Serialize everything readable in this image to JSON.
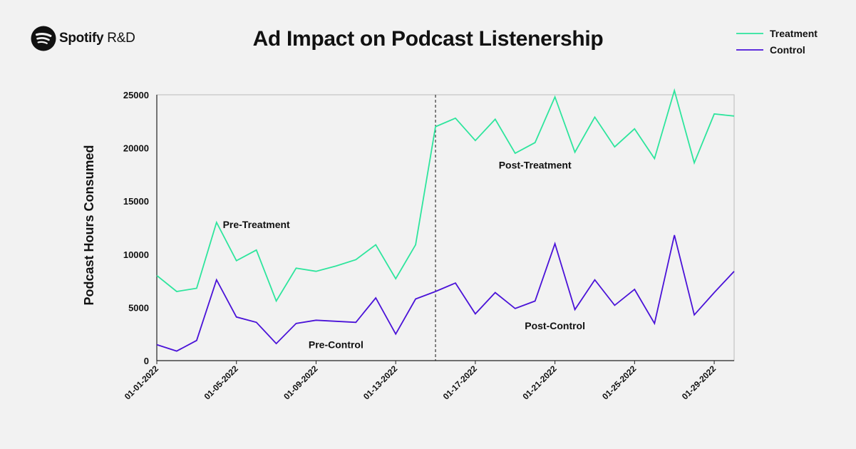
{
  "brand": {
    "name": "Spotify",
    "suffix": "R&D"
  },
  "colors": {
    "treatment": "#2ee59d",
    "control": "#4a12d8",
    "axis": "#222222",
    "divider": "#111111"
  },
  "chart_data": {
    "type": "line",
    "title": "Ad Impact on Podcast Listenership",
    "xlabel": "",
    "ylabel": "Podcast Hours Consumed",
    "ylim": [
      0,
      25000
    ],
    "yticks": [
      0,
      5000,
      10000,
      15000,
      20000,
      25000
    ],
    "x": [
      "01-01-2022",
      "01-02-2022",
      "01-03-2022",
      "01-04-2022",
      "01-05-2022",
      "01-06-2022",
      "01-07-2022",
      "01-08-2022",
      "01-09-2022",
      "01-10-2022",
      "01-11-2022",
      "01-12-2022",
      "01-13-2022",
      "01-14-2022",
      "01-15-2022",
      "01-16-2022",
      "01-17-2022",
      "01-18-2022",
      "01-19-2022",
      "01-20-2022",
      "01-21-2022",
      "01-22-2022",
      "01-23-2022",
      "01-24-2022",
      "01-25-2022",
      "01-26-2022",
      "01-27-2022",
      "01-28-2022",
      "01-29-2022",
      "01-30-2022"
    ],
    "xtick_labels": [
      "01-01-2022",
      "01-05-2022",
      "01-09-2022",
      "01-13-2022",
      "01-17-2022",
      "01-21-2022",
      "01-25-2022",
      "01-29-2022"
    ],
    "intervention_date": "01-15-2022",
    "series": [
      {
        "name": "Treatment",
        "values": [
          8000,
          6500,
          6800,
          13000,
          9400,
          10400,
          5600,
          8700,
          8400,
          8900,
          9500,
          10900,
          7700,
          10900,
          22000,
          22800,
          20700,
          22700,
          19500,
          20500,
          24800,
          19600,
          22900,
          20100,
          21800,
          19000,
          25400,
          18600,
          23200,
          23000
        ]
      },
      {
        "name": "Control",
        "values": [
          1500,
          900,
          1900,
          7600,
          4100,
          3600,
          1600,
          3500,
          3800,
          3700,
          3600,
          5900,
          2500,
          5800,
          6500,
          7300,
          4400,
          6400,
          4900,
          5600,
          11000,
          4800,
          7600,
          5200,
          6700,
          3500,
          11800,
          4300,
          6400,
          8400
        ]
      }
    ],
    "annotations": [
      {
        "text": "Pre-Treatment",
        "x": "01-06-2022",
        "y": 12800
      },
      {
        "text": "Post-Treatment",
        "x": "01-20-2022",
        "y": 18400
      },
      {
        "text": "Pre-Control",
        "x": "01-10-2022",
        "y": 1500
      },
      {
        "text": "Post-Control",
        "x": "01-21-2022",
        "y": 3300
      }
    ]
  }
}
